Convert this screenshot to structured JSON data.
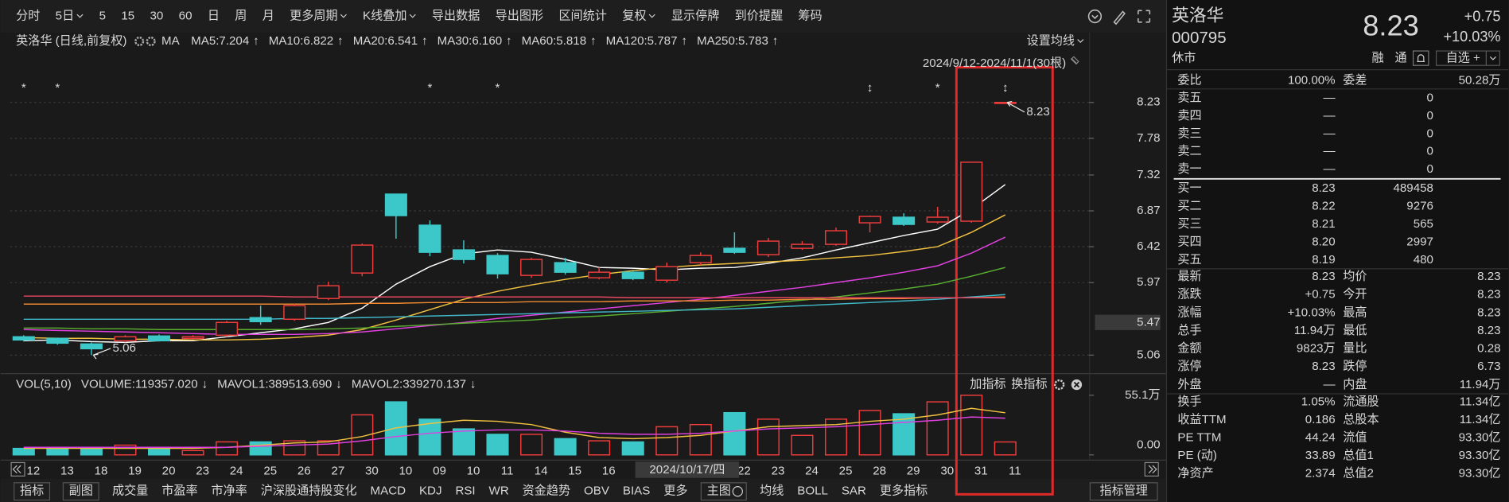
{
  "toolbar": {
    "items": [
      {
        "label": "分时"
      },
      {
        "label": "5日",
        "dropdown": true
      },
      {
        "label": "5"
      },
      {
        "label": "15"
      },
      {
        "label": "30"
      },
      {
        "label": "60"
      },
      {
        "label": "日",
        "active": true
      },
      {
        "label": "周"
      },
      {
        "label": "月"
      },
      {
        "label": "更多周期",
        "dropdown": true
      },
      {
        "label": "K线叠加",
        "dropdown": true
      },
      {
        "label": "导出数据"
      },
      {
        "label": "导出图形"
      },
      {
        "label": "区间统计"
      },
      {
        "label": "复权",
        "dropdown": true,
        "active": true
      },
      {
        "label": "显示停牌"
      },
      {
        "label": "到价提醒"
      },
      {
        "label": "筹码"
      }
    ]
  },
  "legend": {
    "title": "英洛华 (日线,前复权)",
    "ma_label": "MA",
    "settings": "设置均线",
    "range": "2024/9/12-2024/11/1(30根)"
  },
  "chart_data": [
    {
      "type": "candlestick",
      "categories": [
        "12",
        "13",
        "18",
        "19",
        "20",
        "23",
        "24",
        "25",
        "26",
        "27",
        "30",
        "10",
        "09",
        "10",
        "11",
        "14",
        "15",
        "16",
        null,
        null,
        null,
        "22",
        "23",
        "24",
        "25",
        "28",
        "29",
        "30",
        "31",
        "11"
      ],
      "open": [
        5.29,
        5.27,
        5.2,
        5.24,
        5.3,
        5.27,
        5.31,
        5.53,
        5.51,
        5.77,
        6.09,
        7.08,
        6.69,
        6.38,
        6.31,
        6.06,
        6.22,
        6.03,
        6.1,
        6.0,
        6.22,
        6.4,
        6.32,
        6.4,
        6.45,
        6.72,
        6.79,
        6.73,
        6.74,
        8.23
      ],
      "high": [
        5.31,
        5.28,
        5.22,
        5.31,
        5.32,
        5.31,
        5.49,
        5.68,
        5.7,
        5.98,
        6.46,
        7.08,
        6.75,
        6.5,
        6.34,
        6.28,
        6.28,
        6.16,
        6.13,
        6.22,
        6.35,
        6.6,
        6.53,
        6.49,
        6.66,
        6.81,
        6.84,
        6.92,
        7.48,
        8.23
      ],
      "low": [
        5.23,
        5.19,
        5.06,
        5.22,
        5.23,
        5.26,
        5.29,
        5.44,
        5.49,
        5.75,
        6.05,
        6.52,
        6.3,
        6.21,
        6.02,
        6.03,
        6.07,
        6.01,
        6.0,
        5.97,
        6.19,
        6.33,
        6.29,
        6.38,
        6.43,
        6.6,
        6.68,
        6.71,
        6.72,
        8.23
      ],
      "close": [
        5.25,
        5.21,
        5.14,
        5.29,
        5.24,
        5.29,
        5.47,
        5.48,
        5.68,
        5.93,
        6.44,
        6.81,
        6.35,
        6.26,
        6.08,
        6.26,
        6.1,
        6.1,
        6.02,
        6.17,
        6.31,
        6.35,
        6.49,
        6.45,
        6.62,
        6.8,
        6.7,
        6.79,
        7.48,
        8.23
      ],
      "ylim": [
        4.87,
        8.55
      ],
      "yticks": [
        8.23,
        7.78,
        7.32,
        6.87,
        6.42,
        5.97,
        5.06
      ],
      "grid": true,
      "up_color": "#f03c3c",
      "down_color": "#3cc8c8",
      "series": [
        {
          "name": "MA5:7.204",
          "arrow": "↑",
          "color": "#ffffff",
          "values": [
            5.24,
            5.25,
            5.23,
            5.22,
            5.24,
            5.24,
            5.29,
            5.34,
            5.39,
            5.47,
            5.65,
            5.95,
            6.17,
            6.33,
            6.38,
            6.35,
            6.26,
            6.16,
            6.15,
            6.13,
            6.15,
            6.16,
            6.21,
            6.28,
            6.38,
            6.47,
            6.56,
            6.64,
            6.89,
            7.2
          ]
        },
        {
          "name": "MA10:6.822",
          "arrow": "↑",
          "color": "#f0c040",
          "values": [
            5.28,
            5.27,
            5.27,
            5.26,
            5.26,
            5.25,
            5.25,
            5.26,
            5.28,
            5.31,
            5.38,
            5.5,
            5.63,
            5.76,
            5.86,
            5.94,
            6.01,
            6.07,
            6.12,
            6.16,
            6.19,
            6.21,
            6.23,
            6.25,
            6.28,
            6.31,
            6.36,
            6.42,
            6.6,
            6.82
          ]
        },
        {
          "name": "MA20:6.541",
          "arrow": "↑",
          "color": "#e040e0",
          "values": [
            5.38,
            5.37,
            5.36,
            5.35,
            5.34,
            5.33,
            5.32,
            5.32,
            5.32,
            5.33,
            5.35,
            5.39,
            5.43,
            5.47,
            5.52,
            5.56,
            5.6,
            5.64,
            5.68,
            5.72,
            5.76,
            5.81,
            5.86,
            5.91,
            5.97,
            6.03,
            6.1,
            6.18,
            6.34,
            6.54
          ]
        },
        {
          "name": "MA30:6.160",
          "arrow": "↑",
          "color": "#5ab030",
          "values": [
            5.4,
            5.4,
            5.39,
            5.39,
            5.38,
            5.38,
            5.38,
            5.38,
            5.38,
            5.39,
            5.4,
            5.42,
            5.44,
            5.46,
            5.48,
            5.5,
            5.53,
            5.55,
            5.58,
            5.61,
            5.64,
            5.67,
            5.71,
            5.75,
            5.79,
            5.84,
            5.89,
            5.95,
            6.05,
            6.16
          ]
        },
        {
          "name": "MA60:5.818",
          "arrow": "↑",
          "color": "#40b8c8",
          "values": [
            5.51,
            5.51,
            5.51,
            5.51,
            5.51,
            5.51,
            5.51,
            5.51,
            5.52,
            5.52,
            5.53,
            5.54,
            5.55,
            5.56,
            5.57,
            5.58,
            5.59,
            5.6,
            5.61,
            5.62,
            5.63,
            5.64,
            5.66,
            5.68,
            5.7,
            5.72,
            5.74,
            5.76,
            5.79,
            5.82
          ]
        },
        {
          "name": "MA120:5.787",
          "arrow": "↑",
          "color": "#f08a30",
          "values": [
            5.7,
            5.7,
            5.7,
            5.7,
            5.7,
            5.7,
            5.7,
            5.7,
            5.7,
            5.7,
            5.71,
            5.71,
            5.72,
            5.72,
            5.72,
            5.73,
            5.73,
            5.73,
            5.74,
            5.74,
            5.74,
            5.75,
            5.75,
            5.76,
            5.76,
            5.77,
            5.77,
            5.78,
            5.78,
            5.79
          ]
        },
        {
          "name": "MA250:5.783",
          "arrow": "↑",
          "color": "#e84860",
          "values": [
            5.8,
            5.8,
            5.8,
            5.8,
            5.8,
            5.8,
            5.8,
            5.8,
            5.79,
            5.79,
            5.79,
            5.79,
            5.79,
            5.79,
            5.79,
            5.79,
            5.79,
            5.79,
            5.78,
            5.78,
            5.78,
            5.78,
            5.78,
            5.78,
            5.78,
            5.78,
            5.78,
            5.78,
            5.78,
            5.78
          ]
        }
      ],
      "cursor_price": 5.47,
      "cursor_label": "2024/10/17/四",
      "annotations": [
        {
          "index": 2,
          "text": "5.06"
        },
        {
          "index": 29,
          "text": "8.23"
        }
      ],
      "event_markers": [
        {
          "index": 0,
          "symbol": "*"
        },
        {
          "index": 1,
          "symbol": "*"
        },
        {
          "index": 12,
          "symbol": "*"
        },
        {
          "index": 14,
          "symbol": "*"
        },
        {
          "index": 25,
          "symbol": "↕"
        },
        {
          "index": 27,
          "symbol": "*"
        },
        {
          "index": 29,
          "symbol": "↕"
        }
      ]
    },
    {
      "type": "bar",
      "title": "VOL(5,10)",
      "volume_label": {
        "text": "VOLUME:119357.020",
        "arrow": "↓",
        "color": "#ffffff"
      },
      "values": [
        6,
        6,
        6,
        9,
        6,
        4,
        12,
        12,
        13,
        13,
        37,
        49,
        33,
        24,
        19,
        19,
        15,
        13,
        12,
        26,
        28,
        39,
        33,
        18,
        33,
        41,
        38,
        49,
        55.1,
        11.94
      ],
      "ylim": [
        0,
        55.1
      ],
      "yticks": [
        {
          "value": 55.1,
          "label": "55.1万"
        },
        {
          "value": 0,
          "label": "0.00"
        }
      ],
      "series": [
        {
          "name": "MAVOL1:389513.690",
          "arrow": "↓",
          "color": "#f0c040",
          "values": [
            6,
            6,
            6,
            6,
            6,
            6,
            7,
            9,
            11,
            12,
            17,
            25,
            29,
            32,
            31,
            28,
            21,
            16,
            15,
            16,
            18,
            22,
            26,
            27,
            28,
            31,
            33,
            37,
            43,
            38.95
          ]
        },
        {
          "name": "MAVOL2:339270.137",
          "arrow": "↓",
          "color": "#e040e0",
          "values": [
            7,
            7,
            7,
            7,
            7,
            7,
            7,
            8,
            9,
            10,
            13,
            17,
            20,
            22,
            23,
            23,
            22,
            20,
            19,
            19,
            20,
            22,
            24,
            25,
            26,
            28,
            30,
            32,
            35,
            33.93
          ]
        }
      ]
    }
  ],
  "indicator_buttons": [
    "加指标",
    "换指标"
  ],
  "bottom_bar": {
    "tabs": [
      {
        "label": "指标",
        "boxed": true
      },
      {
        "label": "副图",
        "boxed": true
      },
      {
        "label": "成交量",
        "active": true
      },
      {
        "label": "市盈率"
      },
      {
        "label": "市净率"
      },
      {
        "label": "沪深股通持股变化"
      },
      {
        "label": "MACD"
      },
      {
        "label": "KDJ"
      },
      {
        "label": "RSI"
      },
      {
        "label": "WR"
      },
      {
        "label": "资金趋势"
      },
      {
        "label": "OBV"
      },
      {
        "label": "BIAS"
      },
      {
        "label": "更多"
      },
      {
        "label": "主图",
        "boxed": true,
        "icon": true
      },
      {
        "label": "均线",
        "active": true
      },
      {
        "label": "BOLL"
      },
      {
        "label": "SAR"
      },
      {
        "label": "更多指标"
      }
    ],
    "button": "指标管理"
  },
  "quote": {
    "name": "英洛华",
    "code": "000795",
    "status": "休市",
    "price": "8.23",
    "change": "+0.75",
    "change_pct": "+10.03%",
    "tags": [
      "融",
      "通"
    ],
    "watch": "自选 +",
    "ratio": [
      {
        "label": "委比",
        "value": "100.00%",
        "color": "#f03c3c"
      },
      {
        "label": "委差",
        "value": "50.28万",
        "color": "#f03c3c"
      }
    ],
    "asks": [
      {
        "label": "卖五",
        "price": "—",
        "volume": "0"
      },
      {
        "label": "卖四",
        "price": "—",
        "volume": "0"
      },
      {
        "label": "卖三",
        "price": "—",
        "volume": "0"
      },
      {
        "label": "卖二",
        "price": "—",
        "volume": "0"
      },
      {
        "label": "卖一",
        "price": "—",
        "volume": "0"
      }
    ],
    "bids": [
      {
        "label": "买一",
        "price": "8.23",
        "volume": "489458"
      },
      {
        "label": "买二",
        "price": "8.22",
        "volume": "9276"
      },
      {
        "label": "买三",
        "price": "8.21",
        "volume": "565"
      },
      {
        "label": "买四",
        "price": "8.20",
        "volume": "2997"
      },
      {
        "label": "买五",
        "price": "8.19",
        "volume": "480"
      }
    ],
    "stats": [
      [
        {
          "label": "最新",
          "value": "8.23",
          "color": "#f03c3c"
        },
        {
          "label": "均价",
          "value": "8.23",
          "color": "#f03c3c"
        }
      ],
      [
        {
          "label": "涨跌",
          "value": "+0.75",
          "color": "#f03c3c"
        },
        {
          "label": "今开",
          "value": "8.23",
          "color": "#f03c3c"
        }
      ],
      [
        {
          "label": "涨幅",
          "value": "+10.03%",
          "color": "#f03c3c"
        },
        {
          "label": "最高",
          "value": "8.23",
          "color": "#f03c3c"
        }
      ],
      [
        {
          "label": "总手",
          "value": "11.94万",
          "color": "#e0e0e0"
        },
        {
          "label": "最低",
          "value": "8.23",
          "color": "#f03c3c"
        }
      ],
      [
        {
          "label": "金额",
          "value": "9823万",
          "color": "#3cc8c8"
        },
        {
          "label": "量比",
          "value": "0.28",
          "color": "#e0e0e0"
        }
      ],
      [
        {
          "label": "涨停",
          "value": "8.23",
          "color": "#f03c3c"
        },
        {
          "label": "跌停",
          "value": "6.73",
          "color": "#3cd23c"
        }
      ],
      [
        {
          "label": "外盘",
          "value": "—",
          "color": "#e0e0e0"
        },
        {
          "label": "内盘",
          "value": "11.94万",
          "color": "#3cd23c"
        }
      ]
    ],
    "fundamentals": [
      [
        {
          "label": "换手",
          "value": "1.05%"
        },
        {
          "label": "流通股",
          "value": "11.34亿"
        }
      ],
      [
        {
          "label": "收益TTM",
          "value": "0.186"
        },
        {
          "label": "总股本",
          "value": "11.34亿"
        }
      ],
      [
        {
          "label": "PE TTM",
          "value": "44.24"
        },
        {
          "label": "流值",
          "value": "93.30亿"
        }
      ],
      [
        {
          "label": "PE (动)",
          "value": "33.89"
        },
        {
          "label": "总值1",
          "value": "93.30亿"
        }
      ],
      [
        {
          "label": "净资产",
          "value": "2.374"
        },
        {
          "label": "总值2",
          "value": "93.30亿"
        }
      ]
    ]
  }
}
